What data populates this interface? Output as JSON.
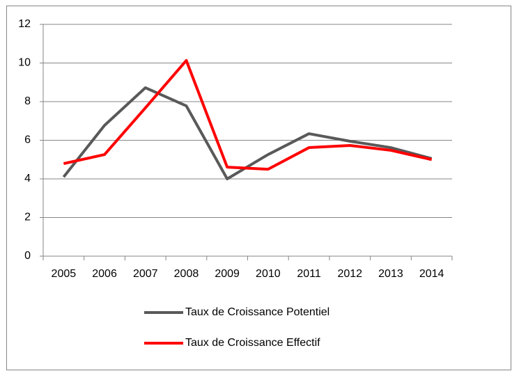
{
  "chart_data": {
    "type": "line",
    "categories": [
      "2005",
      "2006",
      "2007",
      "2008",
      "2009",
      "2010",
      "2011",
      "2012",
      "2013",
      "2014"
    ],
    "series": [
      {
        "name": "Taux de Croissance Potentiel",
        "color": "#595959",
        "values": [
          4.1,
          6.77,
          8.72,
          7.78,
          4.0,
          5.26,
          6.34,
          5.95,
          5.62,
          5.05
        ]
      },
      {
        "name": "Taux de Croissance Effectif",
        "color": "#ff0000",
        "values": [
          4.79,
          5.26,
          7.68,
          10.13,
          4.61,
          4.5,
          5.62,
          5.73,
          5.48,
          5.0
        ]
      }
    ],
    "ylim": [
      0,
      12
    ],
    "yticks": [
      0,
      2,
      4,
      6,
      8,
      10,
      12
    ],
    "grid": true,
    "legend": "bottom"
  }
}
